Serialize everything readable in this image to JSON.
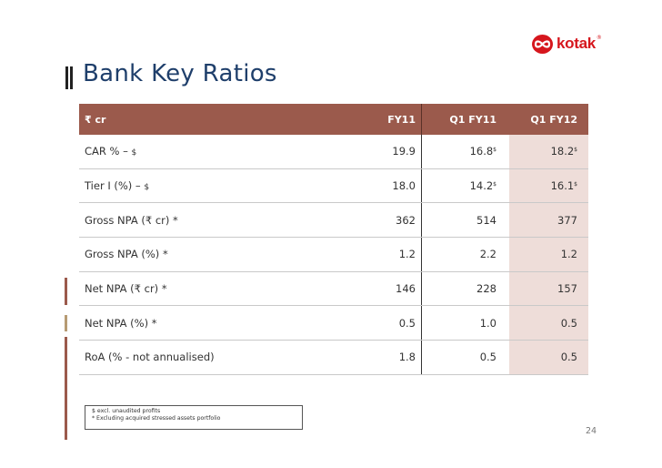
{
  "brand": {
    "name": "kotak",
    "reg": "®",
    "accent": "#d6161d"
  },
  "title": "Bank Key Ratios",
  "table": {
    "header": {
      "label": "₹ cr",
      "cols": [
        "FY11",
        "Q1 FY11",
        "Q1 FY12"
      ]
    },
    "rows": [
      {
        "label": "CAR % – ",
        "label_note": "$",
        "fy11": "19.9",
        "q1fy11": "16.8",
        "q1fy11_sup": "$",
        "q1fy12": "18.2",
        "q1fy12_sup": "$"
      },
      {
        "label": "Tier I (%) – ",
        "label_note": "$",
        "fy11": "18.0",
        "q1fy11": "14.2",
        "q1fy11_sup": "$",
        "q1fy12": "16.1",
        "q1fy12_sup": "$"
      },
      {
        "label": "Gross NPA (₹ cr) *",
        "fy11": "362",
        "q1fy11": "514",
        "q1fy12": "377"
      },
      {
        "label": "Gross NPA (%) *",
        "fy11": "1.2",
        "q1fy11": "2.2",
        "q1fy12": "1.2"
      },
      {
        "label": "Net NPA (₹ cr) *",
        "fy11": "146",
        "q1fy11": "228",
        "q1fy12": "157"
      },
      {
        "label": "Net NPA (%) *",
        "fy11": "0.5",
        "q1fy11": "1.0",
        "q1fy12": "0.5"
      },
      {
        "label": "RoA (% - not annualised)",
        "fy11": "1.8",
        "q1fy11": "0.5",
        "q1fy12": "0.5"
      }
    ]
  },
  "notes": [
    "$ excl. unaudited profits",
    "* Excluding acquired stressed assets portfolio"
  ],
  "page_number": "24",
  "colors": {
    "header_bg": "#9b5a4c",
    "highlight_col": "#eeddd9",
    "title": "#1f3f6b"
  }
}
